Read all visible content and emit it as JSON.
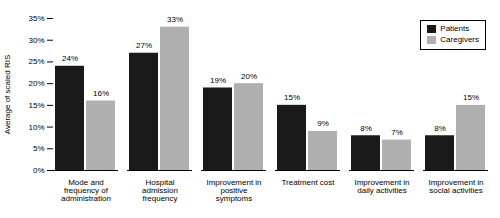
{
  "chart_data": {
    "type": "bar",
    "categories": [
      "Mode and\nfrequency of\nadministration",
      "Hospital\nadmission\nfrequency",
      "Improvement in\npositive\nsymptoms",
      "Treatment cost",
      "Improvement in\ndaily activities",
      "Improvement in\nsocial activities"
    ],
    "series": [
      {
        "name": "Patients",
        "color": "#1a1a1a",
        "values": [
          24,
          27,
          19,
          15,
          8,
          8
        ],
        "value_labels": [
          "24%",
          "27%",
          "19%",
          "15%",
          "8%",
          "8%"
        ]
      },
      {
        "name": "Caregivers",
        "color": "#b0b0b0",
        "values": [
          16,
          33,
          20,
          9,
          7,
          15
        ],
        "value_labels": [
          "16%",
          "33%",
          "20%",
          "9%",
          "7%",
          "15%"
        ]
      }
    ],
    "ylabel": "Average of scaled RIS",
    "ylim": [
      0,
      35
    ],
    "yticks": [
      {
        "value": 0,
        "label": "0%"
      },
      {
        "value": 5,
        "label": "5%"
      },
      {
        "value": 10,
        "label": "10%"
      },
      {
        "value": 15,
        "label": "15%"
      },
      {
        "value": 20,
        "label": "20%"
      },
      {
        "value": 25,
        "label": "25%"
      },
      {
        "value": 30,
        "label": "30%"
      },
      {
        "value": 35,
        "label": "35%"
      }
    ],
    "data_labels": true,
    "legend": "upper right",
    "grid": false
  }
}
